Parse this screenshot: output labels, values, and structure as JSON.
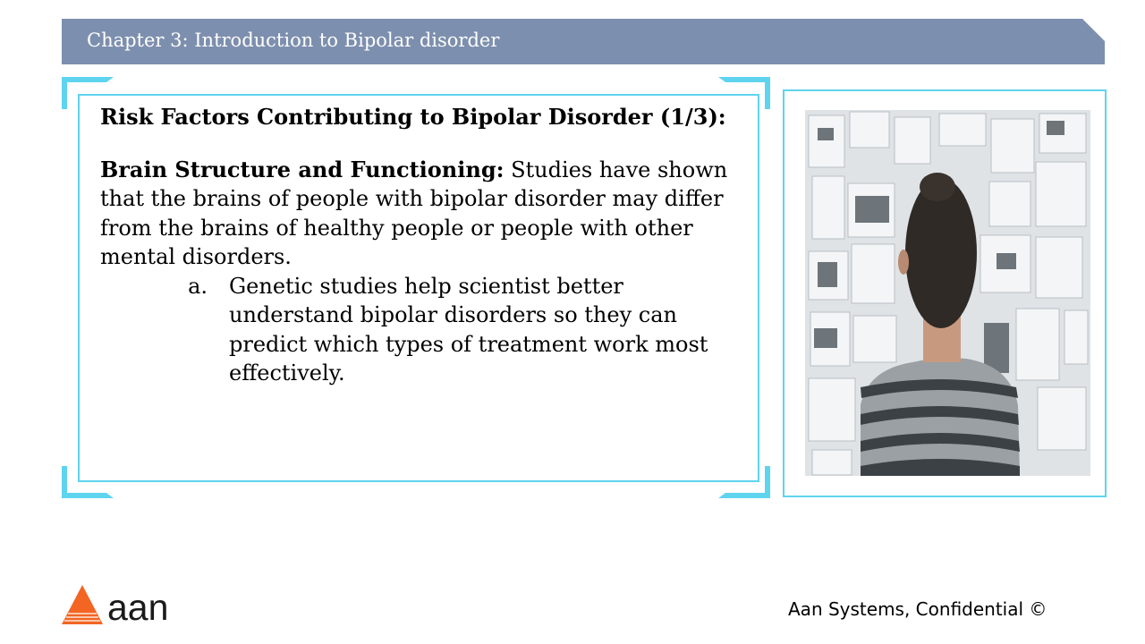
{
  "header": {
    "title": "Chapter 3: Introduction to Bipolar disorder"
  },
  "content": {
    "heading": "Risk Factors Contributing to Bipolar Disorder (1/3):",
    "para_bold": "Brain Structure and Functioning:",
    "para_text": " Studies have shown that the brains of people with bipolar disorder may differ from the brains of healthy people or people with other mental disorders.",
    "list": [
      {
        "marker": "a.",
        "text": "Genetic studies help scientist better understand bipolar disorders so they can predict which types of treatment work most effectively."
      }
    ]
  },
  "image": {
    "icon": "man-looking-at-wall-of-notes-photo"
  },
  "footer": {
    "logo_text": "aan",
    "confidential": "Aan Systems, Confidential ©"
  },
  "colors": {
    "header_bg": "#7d8fae",
    "frame_accent": "#5ed4ef",
    "logo_orange": "#f26522"
  }
}
